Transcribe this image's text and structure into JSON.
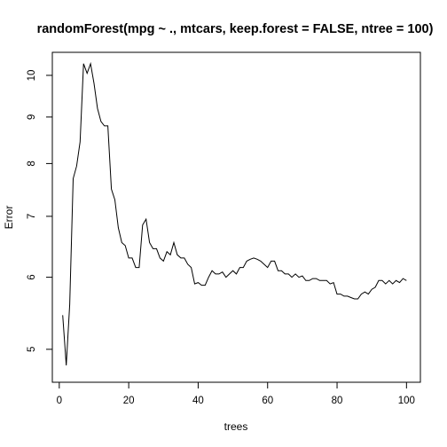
{
  "chart_data": {
    "type": "line",
    "title": "randomForest(mpg ~ ., mtcars, keep.forest = FALSE, ntree = 100)",
    "xlabel": "trees",
    "ylabel": "Error",
    "xlim": [
      -2,
      104
    ],
    "ylim": [
      4.6,
      10.6
    ],
    "y_scale": "log",
    "x_ticks": [
      0,
      20,
      40,
      60,
      80,
      100
    ],
    "y_ticks": [
      5,
      6,
      7,
      8,
      9,
      10
    ],
    "grid": false,
    "series": [
      {
        "values": [
          [
            1,
            5.45
          ],
          [
            2,
            4.8
          ],
          [
            3,
            5.6
          ],
          [
            4,
            7.7
          ],
          [
            5,
            7.95
          ],
          [
            6,
            8.45
          ],
          [
            7,
            10.3
          ],
          [
            8,
            10.05
          ],
          [
            9,
            10.3
          ],
          [
            10,
            9.8
          ],
          [
            11,
            9.2
          ],
          [
            12,
            8.9
          ],
          [
            13,
            8.8
          ],
          [
            14,
            8.8
          ],
          [
            15,
            7.5
          ],
          [
            16,
            7.3
          ],
          [
            17,
            6.8
          ],
          [
            18,
            6.55
          ],
          [
            19,
            6.5
          ],
          [
            20,
            6.3
          ],
          [
            21,
            6.3
          ],
          [
            22,
            6.15
          ],
          [
            23,
            6.15
          ],
          [
            24,
            6.85
          ],
          [
            25,
            6.95
          ],
          [
            26,
            6.55
          ],
          [
            27,
            6.45
          ],
          [
            28,
            6.45
          ],
          [
            29,
            6.3
          ],
          [
            30,
            6.25
          ],
          [
            31,
            6.4
          ],
          [
            32,
            6.35
          ],
          [
            33,
            6.55
          ],
          [
            34,
            6.35
          ],
          [
            35,
            6.3
          ],
          [
            36,
            6.3
          ],
          [
            37,
            6.2
          ],
          [
            38,
            6.15
          ],
          [
            39,
            5.9
          ],
          [
            40,
            5.92
          ],
          [
            41,
            5.88
          ],
          [
            42,
            5.88
          ],
          [
            43,
            6.0
          ],
          [
            44,
            6.1
          ],
          [
            45,
            6.05
          ],
          [
            46,
            6.05
          ],
          [
            47,
            6.08
          ],
          [
            48,
            6.0
          ],
          [
            49,
            6.05
          ],
          [
            50,
            6.1
          ],
          [
            51,
            6.05
          ],
          [
            52,
            6.15
          ],
          [
            53,
            6.15
          ],
          [
            54,
            6.25
          ],
          [
            55,
            6.28
          ],
          [
            56,
            6.3
          ],
          [
            57,
            6.28
          ],
          [
            58,
            6.25
          ],
          [
            59,
            6.2
          ],
          [
            60,
            6.15
          ],
          [
            61,
            6.25
          ],
          [
            62,
            6.25
          ],
          [
            63,
            6.1
          ],
          [
            64,
            6.1
          ],
          [
            65,
            6.05
          ],
          [
            66,
            6.05
          ],
          [
            67,
            6.0
          ],
          [
            68,
            6.05
          ],
          [
            69,
            6.0
          ],
          [
            70,
            6.02
          ],
          [
            71,
            5.95
          ],
          [
            72,
            5.95
          ],
          [
            73,
            5.98
          ],
          [
            74,
            5.98
          ],
          [
            75,
            5.95
          ],
          [
            76,
            5.95
          ],
          [
            77,
            5.95
          ],
          [
            78,
            5.9
          ],
          [
            79,
            5.92
          ],
          [
            80,
            5.75
          ],
          [
            81,
            5.75
          ],
          [
            82,
            5.72
          ],
          [
            83,
            5.72
          ],
          [
            84,
            5.7
          ],
          [
            85,
            5.68
          ],
          [
            86,
            5.68
          ],
          [
            87,
            5.75
          ],
          [
            88,
            5.78
          ],
          [
            89,
            5.75
          ],
          [
            90,
            5.82
          ],
          [
            91,
            5.85
          ],
          [
            92,
            5.95
          ],
          [
            93,
            5.95
          ],
          [
            94,
            5.9
          ],
          [
            95,
            5.95
          ],
          [
            96,
            5.9
          ],
          [
            97,
            5.95
          ],
          [
            98,
            5.92
          ],
          [
            99,
            5.98
          ],
          [
            100,
            5.95
          ]
        ],
        "color": "#000000"
      }
    ]
  }
}
